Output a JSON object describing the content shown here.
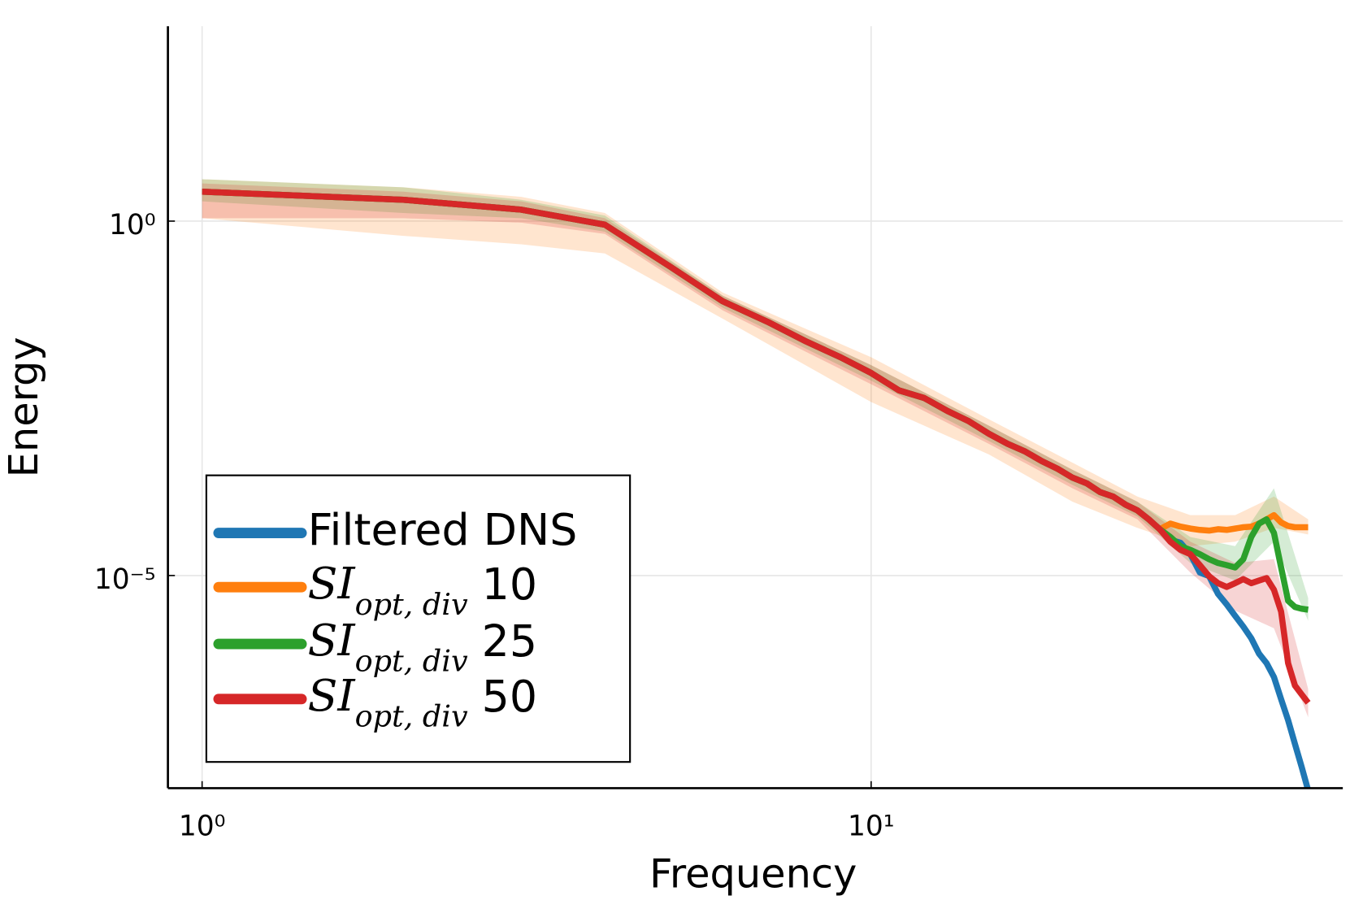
{
  "chart_data": {
    "type": "line",
    "xlabel": "Frequency",
    "ylabel": "Energy",
    "xscale": "log",
    "yscale": "log",
    "xlim": [
      0.889,
      50.7
    ],
    "ylim": [
      1e-08,
      562
    ],
    "xticks": [
      {
        "value": 1,
        "label": "10⁰"
      },
      {
        "value": 10,
        "label": "10¹"
      }
    ],
    "yticks": [
      {
        "value": 1e-05,
        "label": "10⁻⁵"
      },
      {
        "value": 1,
        "label": "10⁰"
      }
    ],
    "grid": true,
    "legend": "lower left",
    "x": [
      1,
      2,
      3,
      4,
      5,
      6,
      7,
      8,
      9,
      10,
      11,
      12,
      13,
      14,
      15,
      16,
      17,
      18,
      19,
      20,
      21,
      22,
      23,
      24,
      25,
      26,
      27,
      28,
      29,
      30,
      31,
      32,
      33,
      34,
      35,
      36,
      37,
      38,
      39,
      40,
      41,
      42,
      43,
      44,
      45
    ],
    "band_x": [
      1,
      2,
      3,
      4,
      6,
      10,
      15,
      20,
      25,
      30,
      35,
      40,
      45
    ],
    "series": [
      {
        "name": "Filtered DNS",
        "color": "#1f77b4",
        "values": [
          2.6,
          2.0,
          1.45,
          0.89,
          0.23,
          0.074,
          0.038,
          0.02,
          0.012,
          0.0072,
          0.0041,
          0.0032,
          0.0021,
          0.0015,
          0.001,
          0.00072,
          0.00056,
          0.00041,
          0.00032,
          0.00024,
          0.0002,
          0.00015,
          0.00013,
          0.0001,
          8.3e-05,
          6.2e-05,
          4.5e-05,
          3.2e-05,
          2.9e-05,
          2e-05,
          1.1e-05,
          9.8e-06,
          5.5e-06,
          3.9e-06,
          2.7e-06,
          1.9e-06,
          1.3e-06,
          7.9e-07,
          5.8e-07,
          3.7e-07,
          1.8e-07,
          9.1e-08,
          4.2e-08,
          2e-08,
          9.3e-09
        ]
      },
      {
        "name": "SI_{opt, div} 10",
        "color": "#ff7f0e",
        "values": [
          2.6,
          2.0,
          1.45,
          0.89,
          0.23,
          0.074,
          0.038,
          0.02,
          0.012,
          0.0072,
          0.0041,
          0.0032,
          0.0021,
          0.0015,
          0.001,
          0.00072,
          0.00056,
          0.00041,
          0.00032,
          0.00024,
          0.0002,
          0.00015,
          0.00013,
          0.0001,
          8.3e-05,
          6.2e-05,
          4.5e-05,
          5.4e-05,
          4.9e-05,
          4.6e-05,
          4.4e-05,
          4.3e-05,
          4.5e-05,
          4.4e-05,
          4.6e-05,
          4.8e-05,
          4.9e-05,
          5.4e-05,
          6.2e-05,
          7.1e-05,
          5.6e-05,
          5e-05,
          4.8e-05,
          4.8e-05,
          4.8e-05
        ],
        "lower": [
          1.1,
          0.62,
          0.47,
          0.35,
          0.042,
          0.0028,
          0.00051,
          0.00011,
          4.7e-05,
          2.6e-05,
          3e-05,
          4.7e-05,
          3.8e-05
        ],
        "upper": [
          3.9,
          3.0,
          2.2,
          1.3,
          0.098,
          0.012,
          0.0016,
          0.00039,
          0.00013,
          7.1e-05,
          7.1e-05,
          0.00013,
          6.2e-05
        ]
      },
      {
        "name": "SI_{opt, div} 25",
        "color": "#2ca02c",
        "values": [
          2.6,
          2.0,
          1.45,
          0.89,
          0.23,
          0.074,
          0.038,
          0.02,
          0.012,
          0.0072,
          0.0041,
          0.0032,
          0.0021,
          0.0015,
          0.001,
          0.00072,
          0.00056,
          0.00041,
          0.00032,
          0.00024,
          0.0002,
          0.00015,
          0.00013,
          0.0001,
          8.3e-05,
          6.2e-05,
          4.5e-05,
          3.5e-05,
          2.6e-05,
          2.3e-05,
          2e-05,
          1.7e-05,
          1.5e-05,
          1.4e-05,
          1.3e-05,
          1.7e-05,
          3.5e-05,
          5.4e-05,
          6.2e-05,
          4e-05,
          1.3e-05,
          4.4e-06,
          3.6e-06,
          3.4e-06,
          3.3e-06
        ],
        "lower": [
          1.9,
          1.3,
          1.1,
          0.71,
          0.06,
          0.0056,
          0.00079,
          0.00019,
          6.8e-05,
          1.5e-05,
          8.5e-06,
          3e-05,
          2.3e-06
        ],
        "upper": [
          3.9,
          3.0,
          2.0,
          1.2,
          0.089,
          0.0093,
          0.0013,
          0.00031,
          0.00011,
          3.5e-05,
          2.6e-05,
          0.00017,
          4.8e-06
        ]
      },
      {
        "name": "SI_{opt, div} 50",
        "color": "#d62728",
        "values": [
          2.6,
          2.0,
          1.45,
          0.89,
          0.23,
          0.074,
          0.038,
          0.02,
          0.012,
          0.0072,
          0.0041,
          0.0032,
          0.0021,
          0.0015,
          0.001,
          0.00072,
          0.00056,
          0.00041,
          0.00032,
          0.00024,
          0.0002,
          0.00015,
          0.00013,
          0.0001,
          8.3e-05,
          6.2e-05,
          4.5e-05,
          3e-05,
          2.3e-05,
          2e-05,
          1.4e-05,
          9.8e-06,
          7.8e-06,
          6.9e-06,
          7.8e-06,
          8.9e-06,
          7.8e-06,
          8.5e-06,
          9.2e-06,
          6.3e-06,
          3.1e-06,
          5.8e-07,
          2.8e-07,
          2.1e-07,
          1.6e-07
        ],
        "lower": [
          1.1,
          1.1,
          0.95,
          0.66,
          0.055,
          0.005,
          0.00072,
          0.00017,
          6.2e-05,
          1.1e-05,
          3.2e-06,
          1.8e-06,
          1e-07
        ],
        "upper": [
          3.4,
          2.6,
          1.9,
          1.1,
          0.089,
          0.0093,
          0.0013,
          0.00031,
          0.00011,
          3e-05,
          1.5e-05,
          1.7e-05,
          2.5e-07
        ]
      }
    ]
  }
}
